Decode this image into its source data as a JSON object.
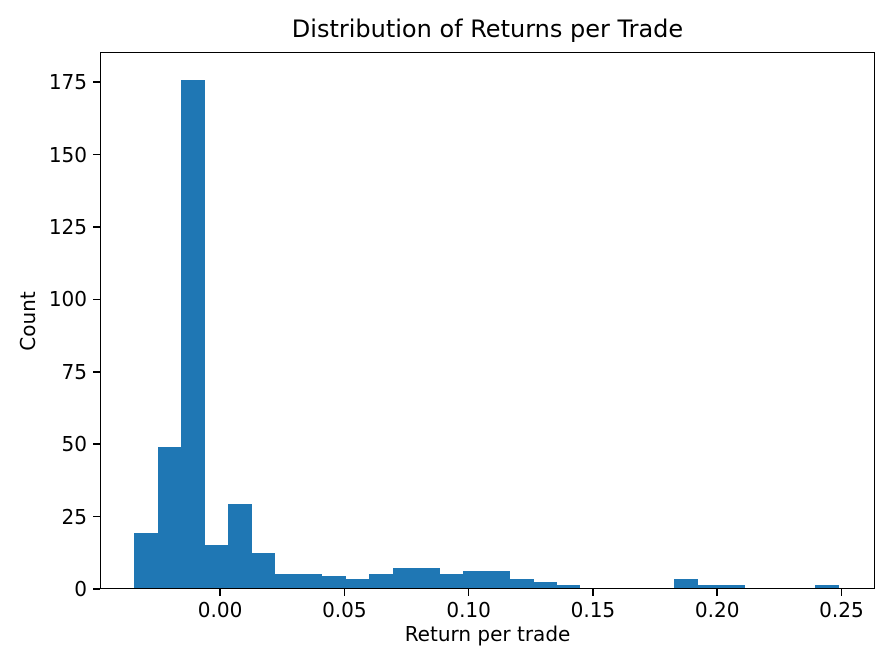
{
  "chart_data": {
    "type": "bar",
    "subtype": "histogram",
    "title": "Distribution of Returns per Trade",
    "xlabel": "Return per trade",
    "ylabel": "Count",
    "bar_color": "#1f77b4",
    "grid": false,
    "legend": null,
    "bin_start": -0.0349,
    "bin_width": 0.009474,
    "counts": [
      19,
      49,
      176,
      15,
      29,
      12,
      5,
      5,
      4,
      3,
      5,
      7,
      7,
      5,
      6,
      6,
      3,
      2,
      1,
      0,
      0,
      0,
      0,
      3,
      1,
      1,
      0,
      0,
      0,
      1
    ],
    "xlim": [
      -0.0483,
      0.2635
    ],
    "ylim": [
      0,
      185.4
    ],
    "xticks": [
      0.0,
      0.05,
      0.1,
      0.15,
      0.2,
      0.25
    ],
    "xtick_labels": [
      "0.00",
      "0.05",
      "0.10",
      "0.15",
      "0.20",
      "0.25"
    ],
    "yticks": [
      0,
      25,
      50,
      75,
      100,
      125,
      150,
      175
    ],
    "ytick_labels": [
      "0",
      "25",
      "50",
      "75",
      "100",
      "125",
      "150",
      "175"
    ]
  }
}
